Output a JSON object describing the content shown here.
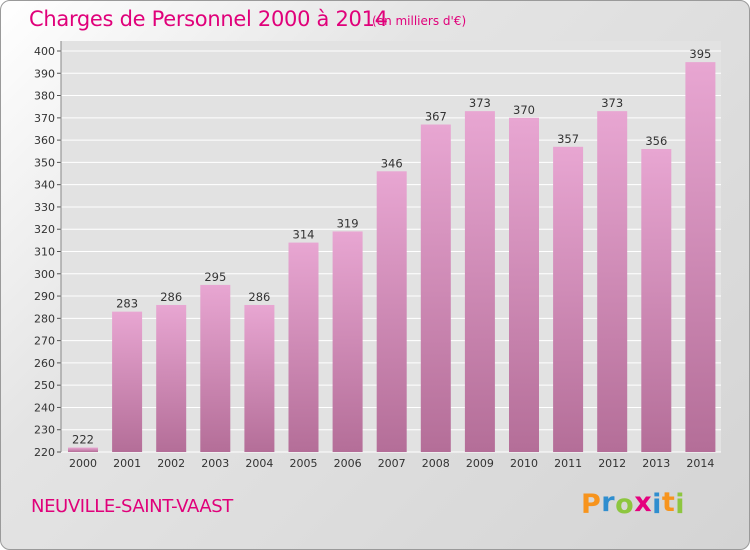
{
  "header": {
    "title": "Charges de Personnel 2000 à 2014",
    "subtitle": "(en milliers d'€)"
  },
  "footer": {
    "commune": "NEUVILLE-SAINT-VAAST",
    "logo_letters": [
      "P",
      "r",
      "o",
      "x",
      "i",
      "t",
      "i"
    ],
    "logo_colors": [
      "#f7941d",
      "#2f8ecf",
      "#8dc63f",
      "#e5007e",
      "#2f8ecf",
      "#f7941d",
      "#8dc63f"
    ]
  },
  "colors": {
    "bar_top": "#e8a6d2",
    "bar_bottom": "#b46e98",
    "accent": "#e0007a"
  },
  "chart_data": {
    "type": "bar",
    "title": "Charges de Personnel 2000 à 2014",
    "subtitle": "(en milliers d'€)",
    "categories": [
      "2000",
      "2001",
      "2002",
      "2003",
      "2004",
      "2005",
      "2006",
      "2007",
      "2008",
      "2009",
      "2010",
      "2011",
      "2012",
      "2013",
      "2014"
    ],
    "values": [
      222,
      283,
      286,
      295,
      286,
      314,
      319,
      346,
      367,
      373,
      370,
      357,
      373,
      356,
      395
    ],
    "ylim": [
      220,
      400
    ],
    "yticks": [
      220,
      230,
      240,
      250,
      260,
      270,
      280,
      290,
      300,
      310,
      320,
      330,
      340,
      350,
      360,
      370,
      380,
      390,
      400
    ],
    "grid": true,
    "legend": "none",
    "data_labels": true
  }
}
